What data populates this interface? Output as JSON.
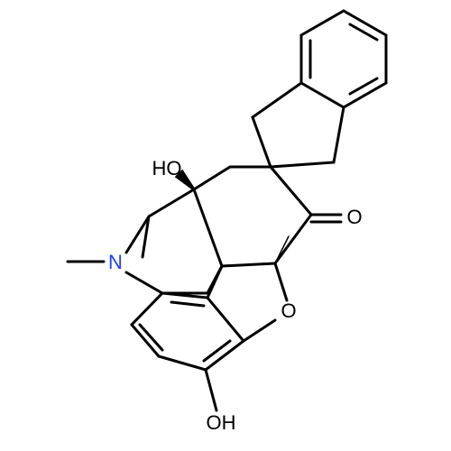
{
  "atoms": [
    {
      "label": "HO"
    },
    {
      "label": "O"
    },
    {
      "label": "N"
    },
    {
      "label": "O"
    },
    {
      "label": "OH"
    }
  ]
}
